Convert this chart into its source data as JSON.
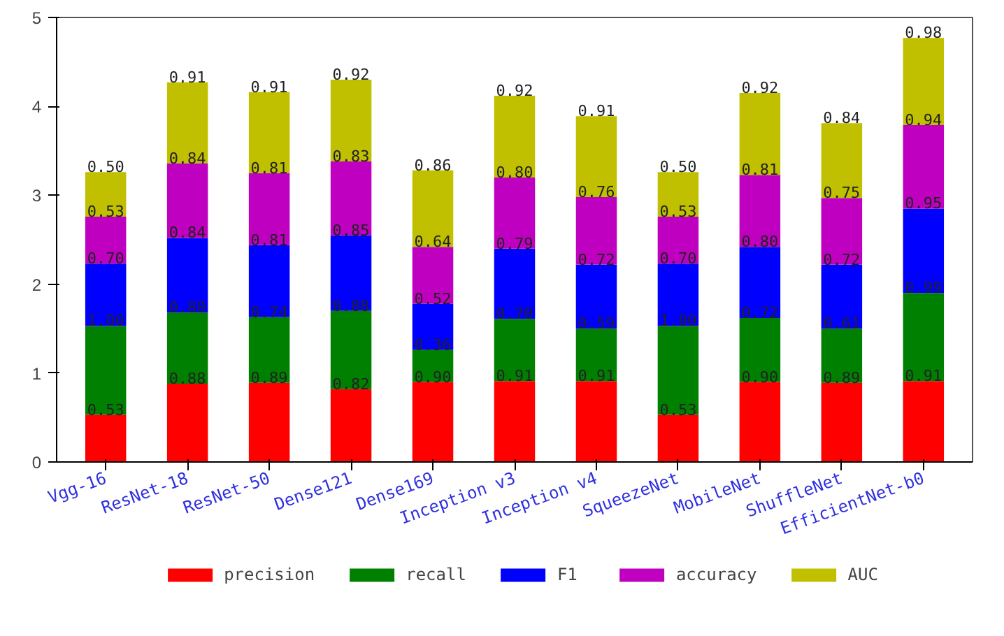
{
  "chart_data": {
    "type": "bar",
    "stacked": true,
    "categories": [
      "Vgg-16",
      "ResNet-18",
      "ResNet-50",
      "Dense121",
      "Dense169",
      "Inception v3",
      "Inception v4",
      "SqueezeNet",
      "MobileNet",
      "ShuffleNet",
      "EfficientNet-b0"
    ],
    "series": [
      {
        "name": "precision",
        "color": "#ff0000",
        "values": [
          0.53,
          0.88,
          0.89,
          0.82,
          0.9,
          0.91,
          0.91,
          0.53,
          0.9,
          0.89,
          0.91
        ],
        "value_labels": [
          "0.53",
          "0.88",
          "0.89",
          "0.82",
          "0.90",
          "0.91",
          "0.91",
          "0.53",
          "0.90",
          "0.89",
          "0.91"
        ]
      },
      {
        "name": "recall",
        "color": "#008000",
        "values": [
          1.0,
          0.8,
          0.74,
          0.88,
          0.36,
          0.7,
          0.59,
          1.0,
          0.72,
          0.61,
          0.99
        ],
        "value_labels": [
          "1.00",
          "0.80",
          "0.74",
          "0.88",
          "0.36",
          "0.70",
          "0.59",
          "1.00",
          "0.72",
          "0.61",
          "0.99"
        ]
      },
      {
        "name": "F1",
        "color": "#0000ff",
        "values": [
          0.7,
          0.84,
          0.81,
          0.85,
          0.52,
          0.79,
          0.72,
          0.7,
          0.8,
          0.72,
          0.95
        ],
        "value_labels": [
          "0.70",
          "0.84",
          "0.81",
          "0.85",
          "0.52",
          "0.79",
          "0.72",
          "0.70",
          "0.80",
          "0.72",
          "0.95"
        ]
      },
      {
        "name": "accuracy",
        "color": "#c000c0",
        "values": [
          0.53,
          0.84,
          0.81,
          0.83,
          0.64,
          0.8,
          0.76,
          0.53,
          0.81,
          0.75,
          0.94
        ],
        "value_labels": [
          "0.53",
          "0.84",
          "0.81",
          "0.83",
          "0.64",
          "0.80",
          "0.76",
          "0.53",
          "0.81",
          "0.75",
          "0.94"
        ]
      },
      {
        "name": "AUC",
        "color": "#c0c000",
        "values": [
          0.5,
          0.91,
          0.91,
          0.92,
          0.86,
          0.92,
          0.91,
          0.5,
          0.92,
          0.84,
          0.98
        ],
        "value_labels": [
          "0.50",
          "0.91",
          "0.91",
          "0.92",
          "0.86",
          "0.92",
          "0.91",
          "0.50",
          "0.92",
          "0.84",
          "0.98"
        ]
      }
    ],
    "ylim": [
      0,
      5
    ],
    "yticks": [
      0,
      1,
      2,
      3,
      4,
      5
    ],
    "grid": false,
    "legend": "bottom"
  }
}
